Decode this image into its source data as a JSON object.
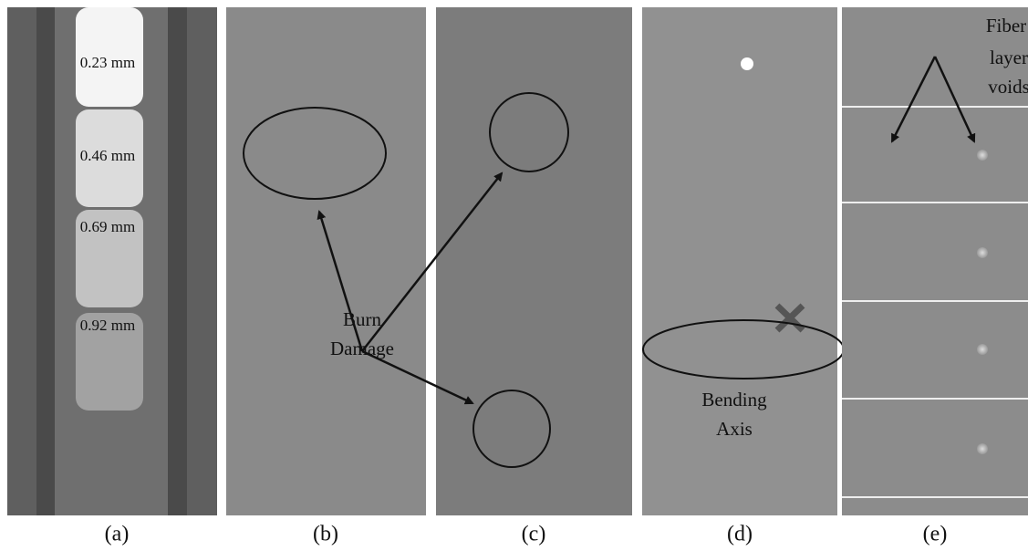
{
  "panels": [
    {
      "caption": "(a)",
      "labels": [
        "0.23 mm",
        "0.46 mm",
        "0.69 mm",
        "0.92 mm"
      ]
    },
    {
      "caption": "(b)",
      "annotation": [
        "Burn",
        "Damage"
      ]
    },
    {
      "caption": "(c)"
    },
    {
      "caption": "(d)",
      "annotation": [
        "Bending",
        "Axis"
      ]
    },
    {
      "caption": "(e)",
      "annotation": [
        "Fiber",
        "layer",
        "voids"
      ]
    }
  ]
}
